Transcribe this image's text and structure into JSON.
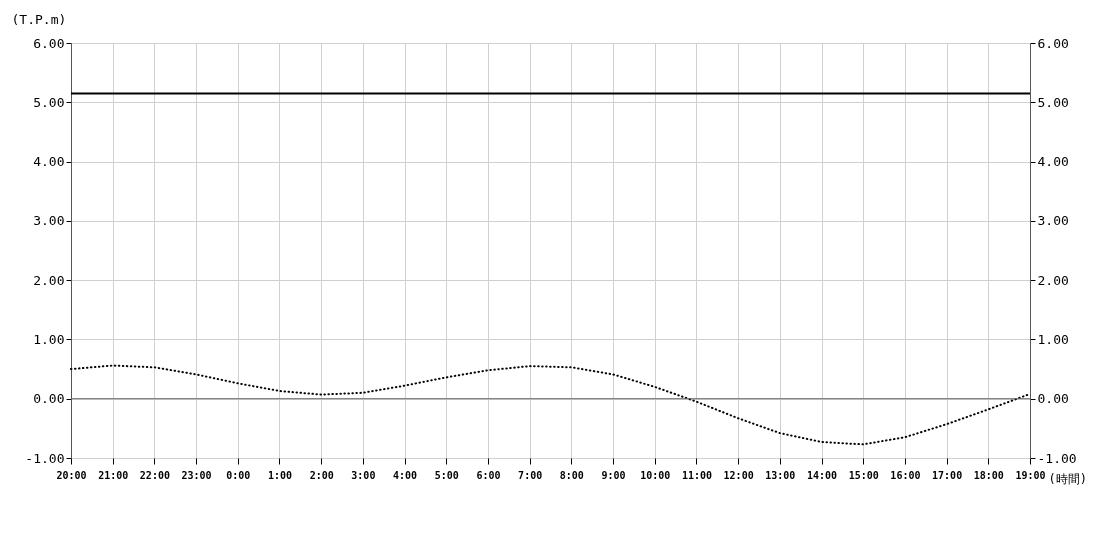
{
  "chart_data": {
    "type": "line",
    "ylabel": "(T.P.m)",
    "xlabel": "(時間)",
    "categories": [
      "20:00",
      "21:00",
      "22:00",
      "23:00",
      "0:00",
      "1:00",
      "2:00",
      "3:00",
      "4:00",
      "5:00",
      "6:00",
      "7:00",
      "8:00",
      "9:00",
      "10:00",
      "11:00",
      "12:00",
      "13:00",
      "14:00",
      "15:00",
      "16:00",
      "17:00",
      "18:00",
      "19:00"
    ],
    "series": [
      {
        "color": "#000000",
        "values": [
          0.5,
          0.56,
          0.53,
          0.41,
          0.26,
          0.13,
          0.07,
          0.1,
          0.22,
          0.36,
          0.48,
          0.55,
          0.53,
          0.41,
          0.2,
          -0.05,
          -0.33,
          -0.58,
          -0.73,
          -0.77,
          -0.65,
          -0.43,
          -0.18,
          0.08
        ]
      }
    ],
    "line_style": "dotted",
    "marker": "none",
    "grid": true,
    "ylim": [
      -1,
      6
    ],
    "yticks": [
      {
        "value": -1,
        "label": "-1.00"
      },
      {
        "value": 0,
        "label": "0.00"
      },
      {
        "value": 1,
        "label": "1.00"
      },
      {
        "value": 2,
        "label": "2.00"
      },
      {
        "value": 3,
        "label": "3.00"
      },
      {
        "value": 4,
        "label": "4.00"
      },
      {
        "value": 5,
        "label": "5.00"
      },
      {
        "value": 6,
        "label": "6.00"
      }
    ],
    "y2lim": [
      -1,
      6
    ],
    "y2ticks": [
      {
        "value": -1,
        "label": "-1.00"
      },
      {
        "value": 0,
        "label": "0.00"
      },
      {
        "value": 1,
        "label": "1.00"
      },
      {
        "value": 2,
        "label": "2.00"
      },
      {
        "value": 3,
        "label": "3.00"
      },
      {
        "value": 4,
        "label": "4.00"
      },
      {
        "value": 5,
        "label": "5.00"
      },
      {
        "value": 6,
        "label": "6.00"
      }
    ],
    "ref_lines": [
      {
        "axis": "y",
        "value": 5.15,
        "color": "#000000",
        "line_style": "solid"
      },
      {
        "axis": "y",
        "value": 0,
        "color": "#666666",
        "line_style": "solid"
      }
    ]
  }
}
